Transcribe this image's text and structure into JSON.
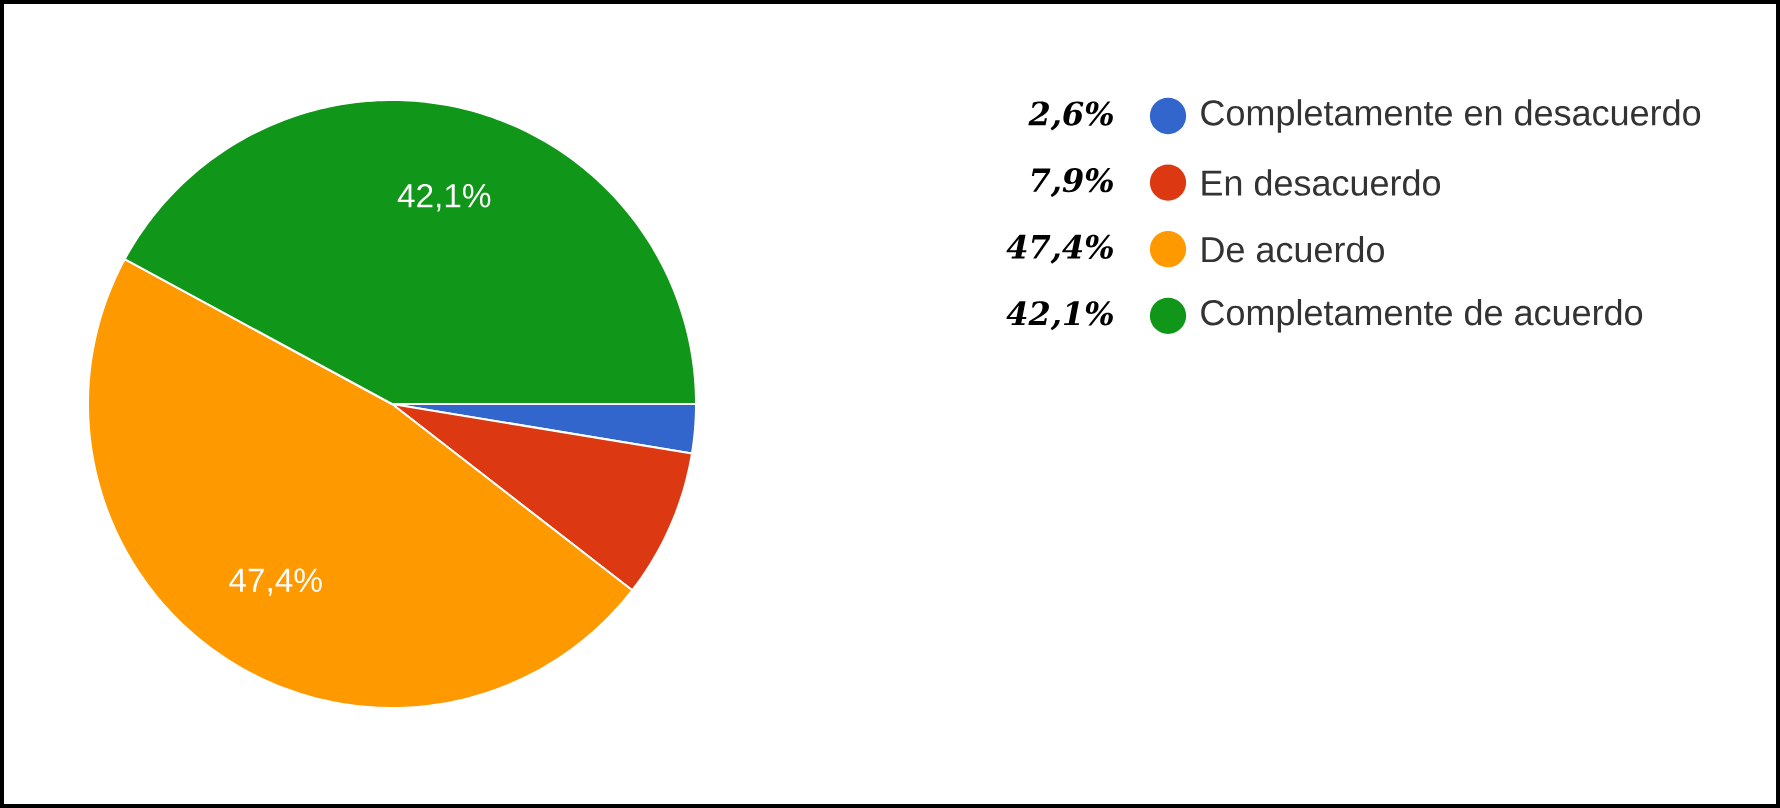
{
  "chart_data": {
    "type": "pie",
    "categories": [
      "Completamente en desacuerdo",
      "En desacuerdo",
      "De acuerdo",
      "Completamente de acuerdo"
    ],
    "values": [
      2.6,
      7.9,
      47.4,
      42.1
    ],
    "colors": [
      "#3366cc",
      "#dc3912",
      "#ff9900",
      "#109618"
    ],
    "value_labels": [
      null,
      null,
      "47,4%",
      "42,1%"
    ],
    "annotations": [
      "2,6%",
      "7,9%",
      "47,4%",
      "42,1%"
    ],
    "legend": "top right"
  }
}
